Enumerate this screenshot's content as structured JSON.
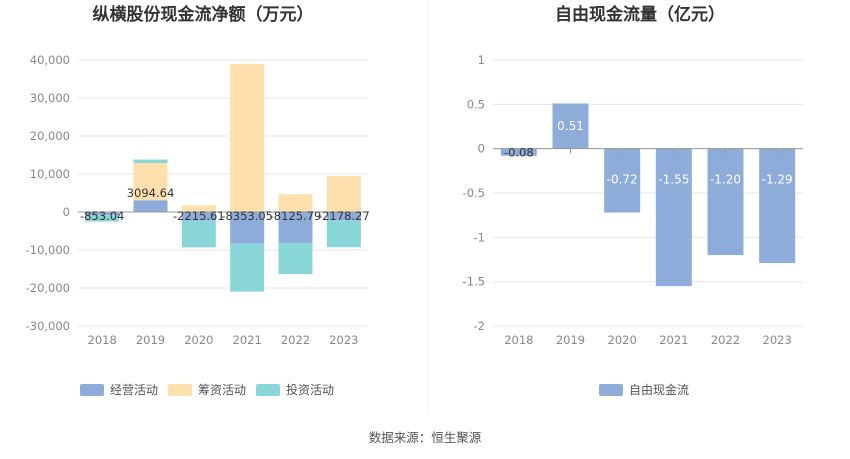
{
  "source": "数据来源：恒生聚源",
  "chart_data": [
    {
      "type": "bar",
      "stacked": true,
      "title": "纵横股份现金流净额（万元）",
      "categories": [
        "2018",
        "2019",
        "2020",
        "2021",
        "2022",
        "2023"
      ],
      "series": [
        {
          "name": "经营活动",
          "color": "#8eacda",
          "values": [
            -853.04,
            3094.64,
            -2215.61,
            -8353.05,
            -8125.79,
            -2178.27
          ]
        },
        {
          "name": "筹资活动",
          "color": "#fde0ad",
          "values": [
            0,
            9800,
            1800,
            39000,
            4700,
            9500
          ]
        },
        {
          "name": "投资活动",
          "color": "#88d6d8",
          "values": [
            -1650,
            900,
            -7100,
            -12600,
            -8200,
            -7100
          ]
        }
      ],
      "data_labels": [
        "-853.04",
        "3094.64",
        "-2215.61",
        "-8353.05",
        "-8125.79",
        "-2178.27"
      ],
      "yticks": [
        40000,
        30000,
        20000,
        10000,
        0,
        -10000,
        -20000,
        -30000
      ],
      "ytick_labels": [
        "40,000",
        "30,000",
        "20,000",
        "10,000",
        "0",
        "-10,000",
        "-20,000",
        "-30,000"
      ],
      "ylim": [
        -30000,
        40000
      ],
      "legend": "bottom"
    },
    {
      "type": "bar",
      "title": "自由现金流量（亿元）",
      "categories": [
        "2018",
        "2019",
        "2020",
        "2021",
        "2022",
        "2023"
      ],
      "series": [
        {
          "name": "自由现金流",
          "color": "#8eacda",
          "values": [
            -0.08,
            0.51,
            -0.72,
            -1.55,
            -1.2,
            -1.29
          ]
        }
      ],
      "data_labels": [
        "-0.08",
        "0.51",
        "-0.72",
        "-1.55",
        "-1.20",
        "-1.29"
      ],
      "yticks": [
        1,
        0.5,
        0,
        -0.5,
        -1,
        -1.5,
        -2
      ],
      "ytick_labels": [
        "1",
        "0.5",
        "0",
        "-0.5",
        "-1",
        "-1.5",
        "-2"
      ],
      "ylim": [
        -2,
        1
      ],
      "legend": "bottom"
    }
  ]
}
